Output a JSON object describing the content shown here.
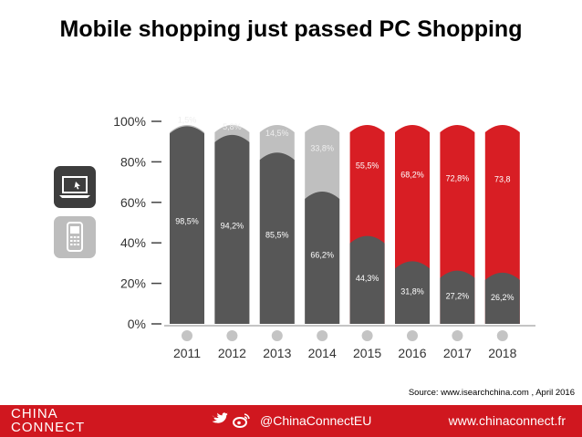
{
  "title": "Mobile shopping just passed PC Shopping",
  "source": "Source: www.isearchchina.com , April 2016",
  "footer": {
    "brand_line1": "CHINA",
    "brand_line2": "CONNECT",
    "handle": "@ChinaConnectEU",
    "website": "www.chinaconnect.fr"
  },
  "icons": {
    "top": "laptop-icon",
    "bottom": "mobile-phone-icon",
    "social": [
      "twitter-icon",
      "weibo-icon"
    ]
  },
  "colors": {
    "pc": "#575757",
    "mobile_before_2015": "#bfbfbf",
    "mobile_from_2015": "#d81e24",
    "footer": "#d0171f"
  },
  "chart_data": {
    "type": "bar",
    "stacked": true,
    "categories": [
      "2011",
      "2012",
      "2013",
      "2014",
      "2015",
      "2016",
      "2017",
      "2018"
    ],
    "series": [
      {
        "name": "",
        "icon": "laptop-icon",
        "values": [
          98.5,
          94.2,
          85.5,
          66.2,
          44.3,
          31.8,
          27.2,
          26.2
        ],
        "labels": [
          "98,5%",
          "94,2%",
          "85,5%",
          "66,2%",
          "44,3%",
          "31,8%",
          "27,2%",
          "26,2%"
        ]
      },
      {
        "name": "",
        "icon": "mobile-phone-icon",
        "values": [
          1.5,
          5.8,
          14.5,
          33.8,
          55.5,
          68.2,
          72.8,
          73.8
        ],
        "labels": [
          "1,5%",
          "5,8%",
          "14,5%",
          "33,8%",
          "55,5%",
          "68,2%",
          "72,8%",
          "73,8"
        ]
      }
    ],
    "yticks": [
      "0%",
      "20%",
      "40%",
      "60%",
      "80%",
      "100%"
    ],
    "ylim": [
      0,
      100
    ],
    "grid": false,
    "legend": "left icons"
  }
}
